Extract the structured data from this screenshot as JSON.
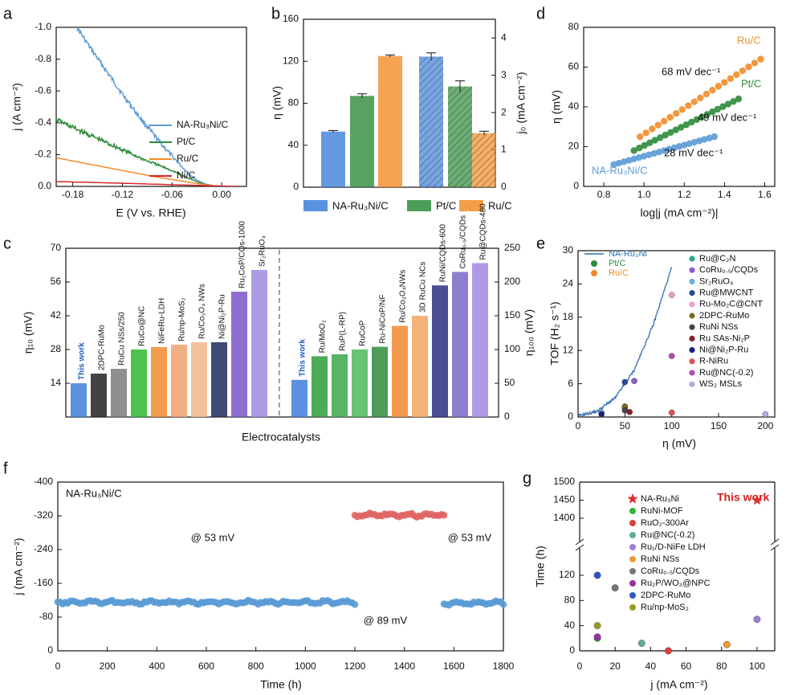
{
  "panels": [
    {
      "id": "a",
      "letter": "a",
      "type": "line",
      "xlabel": "E (V vs. RHE)",
      "ylabel": "j (A cm⁻²)",
      "xlim": [
        -0.2,
        0.03
      ],
      "ylim": [
        -1.0,
        0.0
      ],
      "xticks": [
        -0.18,
        -0.12,
        -0.06,
        0.0
      ],
      "xtick_labels": [
        "-0.18",
        "-0.12",
        "-0.06",
        "0.00"
      ],
      "yticks": [
        0.0,
        -0.2,
        -0.4,
        -0.6,
        -0.8,
        -1.0
      ],
      "ytick_labels": [
        "0.0",
        "-0.2",
        "-0.4",
        "-0.6",
        "-0.8",
        "-1.0"
      ],
      "series": [
        {
          "name": "NA-Ru₃Ni/C",
          "color": "#5b9bd5",
          "noisy": true,
          "x": [
            -0.175,
            -0.16,
            -0.14,
            -0.12,
            -0.1,
            -0.08,
            -0.06,
            -0.04,
            -0.03,
            -0.02,
            -0.01,
            0.0,
            0.02
          ],
          "y": [
            -1.0,
            -0.88,
            -0.73,
            -0.58,
            -0.44,
            -0.31,
            -0.19,
            -0.08,
            -0.04,
            -0.015,
            -0.005,
            -0.001,
            0.0
          ]
        },
        {
          "name": "Pt/C",
          "color": "#2e8b3a",
          "noisy": true,
          "x": [
            -0.2,
            -0.18,
            -0.15,
            -0.12,
            -0.09,
            -0.06,
            -0.04,
            -0.03,
            -0.02,
            -0.01,
            0.0,
            0.02
          ],
          "y": [
            -0.42,
            -0.37,
            -0.3,
            -0.23,
            -0.16,
            -0.1,
            -0.05,
            -0.03,
            -0.012,
            -0.004,
            -0.001,
            0.0
          ]
        },
        {
          "name": "Ru/C",
          "color": "#f28c28",
          "x": [
            -0.2,
            -0.17,
            -0.14,
            -0.11,
            -0.08,
            -0.05,
            -0.03,
            -0.01,
            0.0,
            0.02
          ],
          "y": [
            -0.18,
            -0.15,
            -0.12,
            -0.09,
            -0.06,
            -0.035,
            -0.018,
            -0.005,
            -0.001,
            0.0
          ]
        },
        {
          "name": "Ni/C",
          "color": "#d62728",
          "x": [
            -0.2,
            -0.15,
            -0.1,
            -0.05,
            0.0,
            0.02
          ],
          "y": [
            -0.03,
            -0.024,
            -0.017,
            -0.009,
            -0.002,
            0.0
          ]
        }
      ]
    },
    {
      "id": "b",
      "letter": "b",
      "type": "bar",
      "ylabel": "η (mV)",
      "y2label": "j₀ (mA cm⁻²)",
      "ylim": [
        0,
        160
      ],
      "y2lim": [
        0,
        4.5
      ],
      "yticks": [
        0,
        40,
        80,
        120,
        160
      ],
      "y2ticks": [
        0,
        1,
        2,
        3,
        4
      ],
      "legend": [
        "NA-Ru₃Ni/C",
        "Pt/C",
        "Ru/C"
      ],
      "colors": [
        "#3d7fd9",
        "#2e8b3a",
        "#f28c28"
      ],
      "eta": [
        53,
        87,
        125
      ],
      "eta_err": [
        1,
        2,
        1
      ],
      "j0": [
        3.5,
        2.7,
        1.45
      ],
      "j0_err": [
        0.1,
        0.15,
        0.05
      ]
    },
    {
      "id": "d",
      "letter": "d",
      "type": "scatter",
      "xlabel": "log|j (mA cm⁻²)|",
      "ylabel": "η (mV)",
      "xlim": [
        0.7,
        1.65
      ],
      "ylim": [
        0,
        80
      ],
      "xticks": [
        0.8,
        1.0,
        1.2,
        1.4,
        1.6
      ],
      "yticks": [
        0,
        20,
        40,
        60,
        80
      ],
      "series": [
        {
          "name": "NA-Ru₃Ni/C",
          "slope": "28 mV dec⁻¹",
          "color": "#5b9bd5",
          "x0": 0.85,
          "x1": 1.35,
          "y0": 11,
          "y1": 25
        },
        {
          "name": "Pt/C",
          "slope": "49 mV dec⁻¹",
          "color": "#2e8b3a",
          "x0": 0.95,
          "x1": 1.47,
          "y0": 18,
          "y1": 44
        },
        {
          "name": "Ru/C",
          "slope": "68 mV dec⁻¹",
          "color": "#f28c28",
          "x0": 0.98,
          "x1": 1.58,
          "y0": 25,
          "y1": 64
        }
      ]
    },
    {
      "id": "c",
      "letter": "c",
      "type": "bar",
      "xlabel": "Electrocatalysts",
      "ylabel": "η₁₀ (mV)",
      "y2label": "η₁₀₀ (mV)",
      "ylim": [
        0,
        70
      ],
      "y2lim": [
        0,
        250
      ],
      "yticks": [
        14,
        28,
        42,
        56,
        70
      ],
      "y2ticks": [
        0,
        50,
        100,
        150,
        200,
        250
      ],
      "left_categories": [
        "This work",
        "2DPC-RuMo",
        "RuCu NSs/250",
        "RuCo@NC",
        "NiFeRu-LDH",
        "Ru/np-MoS₂",
        "Ru/Co₃O₄ NWs",
        "Ni@Ni₂P-Ru",
        "Ru₁CoP/CQs-1000",
        "Sr₂RuO₄"
      ],
      "left_values": [
        14,
        18,
        20,
        28,
        29,
        30,
        31,
        31,
        52,
        61
      ],
      "right_categories": [
        "This work",
        "Ru/MoO₂",
        "RuP(L-RP)",
        "RuCoP",
        "Ru-NiCoP/NF",
        "Ru/Co₃O₄NWs",
        "3D RuCu NCs",
        "RuNi/CQDs-600",
        "CoRu₀.₅/CQDs",
        "Ru@CQDs-480"
      ],
      "right_values": [
        55,
        90,
        93,
        100,
        104,
        135,
        150,
        195,
        215,
        228
      ]
    },
    {
      "id": "e",
      "letter": "e",
      "type": "scatter",
      "xlabel": "η (mV)",
      "ylabel": "TOF (H₂ s⁻¹)",
      "xlim": [
        0,
        210
      ],
      "ylim": [
        0,
        30
      ],
      "xticks": [
        0,
        50,
        100,
        150,
        200
      ],
      "yticks": [
        0,
        6,
        12,
        18,
        24,
        30
      ],
      "lines": [
        {
          "name": "NA-Ru₃Ni",
          "color": "#2f6fb8"
        },
        {
          "name": "Pt/C",
          "color": "#2e8b3a"
        },
        {
          "name": "Ru/C",
          "color": "#f28c28"
        }
      ],
      "curve": {
        "x": [
          0,
          20,
          40,
          60,
          80,
          100
        ],
        "y": [
          0.2,
          1.0,
          3.5,
          8.5,
          16.5,
          27
        ]
      },
      "points": [
        {
          "name": "Ru@C₂N",
          "color": "#2ca58d",
          "x": 50,
          "y": 1.7
        },
        {
          "name": "CoRu₀.₅/CQDs",
          "color": "#8a5fcf",
          "x": 60,
          "y": 6.5
        },
        {
          "name": "Sr₂RuO₄",
          "color": "#6ab0e0",
          "x": 25,
          "y": 0.8
        },
        {
          "name": "Ru@MWCNT",
          "color": "#1f4e9e",
          "x": 50,
          "y": 6.3
        },
        {
          "name": "Ru-Mo₂C@CNT",
          "color": "#f19ad2",
          "x": 100,
          "y": 22
        },
        {
          "name": "2DPC-RuMo",
          "color": "#7a6a20",
          "x": 50,
          "y": 1.9
        },
        {
          "name": "RuNi NSs",
          "color": "#444444",
          "x": 50,
          "y": 1.2
        },
        {
          "name": "Ru SAs-Ni₂P",
          "color": "#8b1e2d",
          "x": 55,
          "y": 0.9
        },
        {
          "name": "Ni@Ni₂P-Ru",
          "color": "#1a237e",
          "x": 25,
          "y": 0.5
        },
        {
          "name": "R-NiRu",
          "color": "#e05050",
          "x": 100,
          "y": 0.8
        },
        {
          "name": "Ru@NC(-0.2)",
          "color": "#b04fb0",
          "x": 100,
          "y": 11
        },
        {
          "name": "WS₂ MSLs",
          "color": "#b9a7e6",
          "x": 200,
          "y": 0.5
        }
      ]
    },
    {
      "id": "f",
      "letter": "f",
      "type": "scatter",
      "title": "NA-Ru₃Ni/C",
      "xlabel": "Time (h)",
      "ylabel": "j (mA cm⁻²)",
      "xlim": [
        0,
        1800
      ],
      "ylim": [
        -400,
        0
      ],
      "xticks": [
        0,
        200,
        400,
        600,
        800,
        1000,
        1200,
        1400,
        1600,
        1800
      ],
      "yticks": [
        0,
        -80,
        -160,
        -240,
        -320,
        -400
      ],
      "segments": [
        {
          "label": "@ 53 mV",
          "color": "#5b9bd5",
          "x0": 0,
          "x1": 1200,
          "mean": -115
        },
        {
          "label": "@ 89 mV",
          "color": "#e06666",
          "x0": 1200,
          "x1": 1560,
          "mean": -322
        },
        {
          "label": "@ 53 mV",
          "color": "#5b9bd5",
          "x0": 1560,
          "x1": 1800,
          "mean": -113
        }
      ]
    },
    {
      "id": "g",
      "letter": "g",
      "type": "scatter",
      "xlabel": "j (mA cm⁻²)",
      "ylabel": "Time (h)",
      "xlim": [
        0,
        110
      ],
      "xticks": [
        0,
        20,
        40,
        60,
        80,
        100
      ],
      "upper_yticks": [
        1400,
        1450,
        1500
      ],
      "lower_yticks": [
        0,
        40,
        80,
        120
      ],
      "annotation": "This work",
      "points": [
        {
          "name": "NA-Ru₃Ni",
          "color": "#e03030",
          "x": 100,
          "y": 1450,
          "star": true
        },
        {
          "name": "RuNi-MOF",
          "color": "#2eb82e",
          "x": 10,
          "y": 20
        },
        {
          "name": "RuO₂-300Ar",
          "color": "#d94040",
          "x": 50,
          "y": 0
        },
        {
          "name": "Ru@NC(-0.2)",
          "color": "#5fae8f",
          "x": 35,
          "y": 12
        },
        {
          "name": "Ru₁/D-NiFe LDH",
          "color": "#9b7fd6",
          "x": 100,
          "y": 50
        },
        {
          "name": "RuNi NSs",
          "color": "#f09a30",
          "x": 83,
          "y": 10
        },
        {
          "name": "CoRu₀.₅/CQDs",
          "color": "#777777",
          "x": 20,
          "y": 100
        },
        {
          "name": "Ru₂P/WO₃@NPC",
          "color": "#9b2fa0",
          "x": 10,
          "y": 22
        },
        {
          "name": "2DPC-RuMo",
          "color": "#3355c8",
          "x": 10,
          "y": 120
        },
        {
          "name": "Ru/np-MoS₂",
          "color": "#9a9a2a",
          "x": 10,
          "y": 40
        }
      ]
    }
  ]
}
